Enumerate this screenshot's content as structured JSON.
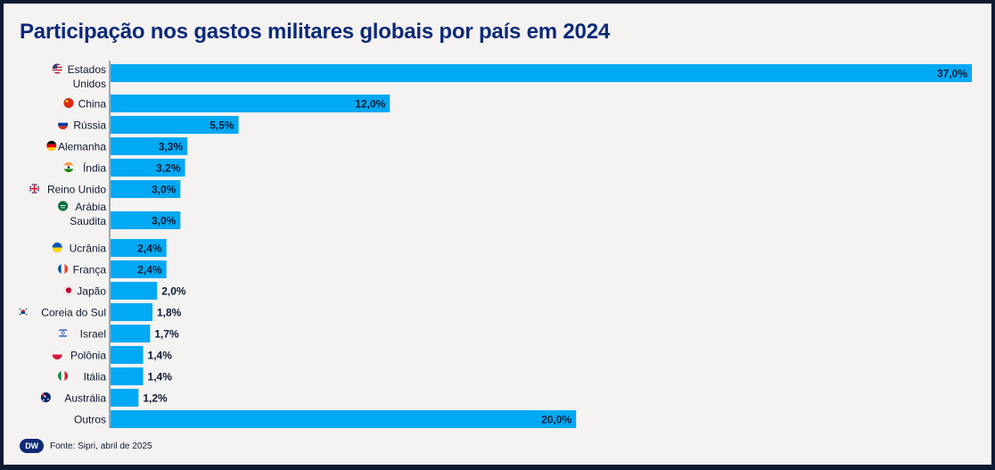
{
  "title": "Participação nos gastos militares globais por país em 2024",
  "source": "Fonte: Sipri, abril de 2025",
  "logo_text": "DW",
  "colors": {
    "bar": "#00a9f4",
    "title": "#0c2a78",
    "label_text": "#0c1b33",
    "background": "#f5f2f2"
  },
  "chart_data": {
    "type": "bar",
    "orientation": "horizontal",
    "title": "Participação nos gastos militares globais por país em 2024",
    "xlim": [
      0,
      37
    ],
    "grid": false,
    "value_format": "percent-comma-1-decimal",
    "categories": [
      {
        "label": "Estados Unidos",
        "lines": [
          "Estados",
          "Unidos"
        ],
        "value": 37.0,
        "value_label": "37,0%",
        "flag": "us-flag-icon"
      },
      {
        "label": "China",
        "lines": [
          "China"
        ],
        "value": 12.0,
        "value_label": "12,0%",
        "flag": "china-flag-icon"
      },
      {
        "label": "Rússia",
        "lines": [
          "Rússia"
        ],
        "value": 5.5,
        "value_label": "5,5%",
        "flag": "russia-flag-icon"
      },
      {
        "label": "Alemanha",
        "lines": [
          "Alemanha"
        ],
        "value": 3.3,
        "value_label": "3,3%",
        "flag": "germany-flag-icon"
      },
      {
        "label": "Índia",
        "lines": [
          "Índia"
        ],
        "value": 3.2,
        "value_label": "3,2%",
        "flag": "india-flag-icon"
      },
      {
        "label": "Reino Unido",
        "lines": [
          "Reino Unido"
        ],
        "value": 3.0,
        "value_label": "3,0%",
        "flag": "uk-flag-icon"
      },
      {
        "label": "Arábia Saudita",
        "lines": [
          "Arábia",
          "Saudita"
        ],
        "value": 3.0,
        "value_label": "3,0%",
        "flag": "saudi-arabia-flag-icon"
      },
      {
        "label": "Ucrânia",
        "lines": [
          "Ucrânia"
        ],
        "value": 2.4,
        "value_label": "2,4%",
        "flag": "ukraine-flag-icon"
      },
      {
        "label": "França",
        "lines": [
          "França"
        ],
        "value": 2.4,
        "value_label": "2,4%",
        "flag": "france-flag-icon"
      },
      {
        "label": "Japão",
        "lines": [
          "Japão"
        ],
        "value": 2.0,
        "value_label": "2,0%",
        "flag": "japan-flag-icon"
      },
      {
        "label": "Coreia do Sul",
        "lines": [
          "Coreia do Sul"
        ],
        "value": 1.8,
        "value_label": "1,8%",
        "flag": "south-korea-flag-icon"
      },
      {
        "label": "Israel",
        "lines": [
          "Israel"
        ],
        "value": 1.7,
        "value_label": "1,7%",
        "flag": "israel-flag-icon"
      },
      {
        "label": "Polônia",
        "lines": [
          "Polônia"
        ],
        "value": 1.4,
        "value_label": "1,4%",
        "flag": "poland-flag-icon"
      },
      {
        "label": "Itália",
        "lines": [
          "Itália"
        ],
        "value": 1.4,
        "value_label": "1,4%",
        "flag": "italy-flag-icon"
      },
      {
        "label": "Austrália",
        "lines": [
          "Austrália"
        ],
        "value": 1.2,
        "value_label": "1,2%",
        "flag": "australia-flag-icon"
      },
      {
        "label": "Outros",
        "lines": [
          "Outros"
        ],
        "value": 20.0,
        "value_label": "20,0%",
        "flag": ""
      }
    ]
  }
}
